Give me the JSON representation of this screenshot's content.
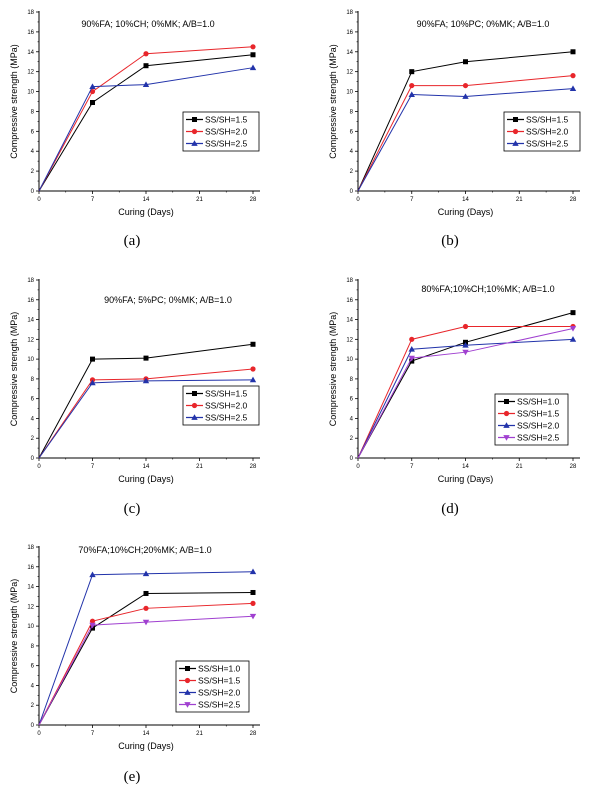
{
  "chart_data": [
    {
      "id": "a",
      "type": "line",
      "caption": "(a)",
      "title": "90%FA; 10%CH; 0%MK; A/B=1.0",
      "xlabel": "Curing (Days)",
      "ylabel": "Compressive strength (MPa)",
      "x": [
        0,
        7,
        14,
        28
      ],
      "xticks": [
        0,
        7,
        14,
        21,
        28
      ],
      "yticks": [
        0,
        2,
        4,
        6,
        8,
        10,
        12,
        14,
        16,
        18
      ],
      "xlim": [
        0,
        28
      ],
      "ylim": [
        0,
        18
      ],
      "legend": "right-middle",
      "series": [
        {
          "name": "SS/SH=1.5",
          "color": "#000000",
          "marker": "square",
          "values": [
            0,
            8.9,
            12.6,
            13.7
          ]
        },
        {
          "name": "SS/SH=2.0",
          "color": "#e8262b",
          "marker": "circle",
          "values": [
            0,
            10.0,
            13.8,
            14.5
          ]
        },
        {
          "name": "SS/SH=2.5",
          "color": "#2233aa",
          "marker": "triangle-up",
          "values": [
            0,
            10.5,
            10.7,
            12.4
          ]
        }
      ]
    },
    {
      "id": "b",
      "type": "line",
      "caption": "(b)",
      "title": "90%FA; 10%PC; 0%MK; A/B=1.0",
      "xlabel": "Curing (Days)",
      "ylabel": "Compressive strength (MPa)",
      "x": [
        0,
        7,
        14,
        28
      ],
      "xticks": [
        0,
        7,
        14,
        21,
        28
      ],
      "yticks": [
        0,
        2,
        4,
        6,
        8,
        10,
        12,
        14,
        16,
        18
      ],
      "xlim": [
        0,
        28
      ],
      "ylim": [
        0,
        18
      ],
      "legend": "right-middle",
      "series": [
        {
          "name": "SS/SH=1.5",
          "color": "#000000",
          "marker": "square",
          "values": [
            0,
            12.0,
            13.0,
            14.0
          ]
        },
        {
          "name": "SS/SH=2.0",
          "color": "#e8262b",
          "marker": "circle",
          "values": [
            0,
            10.6,
            10.6,
            11.6
          ]
        },
        {
          "name": "SS/SH=2.5",
          "color": "#2233aa",
          "marker": "triangle-up",
          "values": [
            0,
            9.7,
            9.5,
            10.3
          ]
        }
      ]
    },
    {
      "id": "c",
      "type": "line",
      "caption": "(c)",
      "title": "90%FA; 5%PC; 0%MK;  A/B=1.0",
      "xlabel": "Curing (Days)",
      "ylabel": "Compressive strength (MPa)",
      "x": [
        0,
        7,
        14,
        28
      ],
      "xticks": [
        0,
        7,
        14,
        21,
        28
      ],
      "yticks": [
        0,
        2,
        4,
        6,
        8,
        10,
        12,
        14,
        16,
        18
      ],
      "xlim": [
        0,
        28
      ],
      "ylim": [
        0,
        18
      ],
      "legend": "right-middle",
      "series": [
        {
          "name": "SS/SH=1.5",
          "color": "#000000",
          "marker": "square",
          "values": [
            0,
            10.0,
            10.1,
            11.5
          ]
        },
        {
          "name": "SS/SH=2.0",
          "color": "#e8262b",
          "marker": "circle",
          "values": [
            0,
            7.9,
            8.0,
            9.0
          ]
        },
        {
          "name": "SS/SH=2.5",
          "color": "#2233aa",
          "marker": "triangle-up",
          "values": [
            0,
            7.6,
            7.8,
            7.9
          ]
        }
      ]
    },
    {
      "id": "d",
      "type": "line",
      "caption": "(d)",
      "title": "80%FA;10%CH;10%MK; A/B=1.0",
      "xlabel": "Curing (Days)",
      "ylabel": "Compressive strength (MPa)",
      "x": [
        0,
        7,
        14,
        28
      ],
      "xticks": [
        0,
        7,
        14,
        21,
        28
      ],
      "yticks": [
        0,
        2,
        4,
        6,
        8,
        10,
        12,
        14,
        16,
        18
      ],
      "xlim": [
        0,
        28
      ],
      "ylim": [
        0,
        18
      ],
      "legend": "bottom-right",
      "series": [
        {
          "name": "SS/SH=1.0",
          "color": "#000000",
          "marker": "square",
          "values": [
            0,
            9.8,
            11.7,
            14.7
          ]
        },
        {
          "name": "SS/SH=1.5",
          "color": "#e8262b",
          "marker": "circle",
          "values": [
            0,
            12.0,
            13.3,
            13.3
          ]
        },
        {
          "name": "SS/SH=2.0",
          "color": "#2233aa",
          "marker": "triangle-up",
          "values": [
            0,
            11.0,
            11.4,
            12.0
          ]
        },
        {
          "name": "SS/SH=2.5",
          "color": "#a040d0",
          "marker": "triangle-down",
          "values": [
            0,
            10.1,
            10.7,
            13.1
          ]
        }
      ]
    },
    {
      "id": "e",
      "type": "line",
      "caption": "(e)",
      "title": "70%FA;10%CH;20%MK; A/B=1.0",
      "xlabel": "Curing (Days)",
      "ylabel": "Compressive strength (MPa)",
      "x": [
        0,
        7,
        14,
        28
      ],
      "xticks": [
        0,
        7,
        14,
        21,
        28
      ],
      "yticks": [
        0,
        2,
        4,
        6,
        8,
        10,
        12,
        14,
        16,
        18
      ],
      "xlim": [
        0,
        28
      ],
      "ylim": [
        0,
        18
      ],
      "legend": "bottom-right",
      "series": [
        {
          "name": "SS/SH=1.0",
          "color": "#000000",
          "marker": "square",
          "values": [
            0,
            9.8,
            13.3,
            13.4
          ]
        },
        {
          "name": "SS/SH=1.5",
          "color": "#e8262b",
          "marker": "circle",
          "values": [
            0,
            10.5,
            11.8,
            12.3
          ]
        },
        {
          "name": "SS/SH=2.0",
          "color": "#2233aa",
          "marker": "triangle-up",
          "values": [
            0,
            15.2,
            15.3,
            15.5
          ]
        },
        {
          "name": "SS/SH=2.5",
          "color": "#a040d0",
          "marker": "triangle-down",
          "values": [
            0,
            10.1,
            10.4,
            11.0
          ]
        }
      ]
    }
  ]
}
